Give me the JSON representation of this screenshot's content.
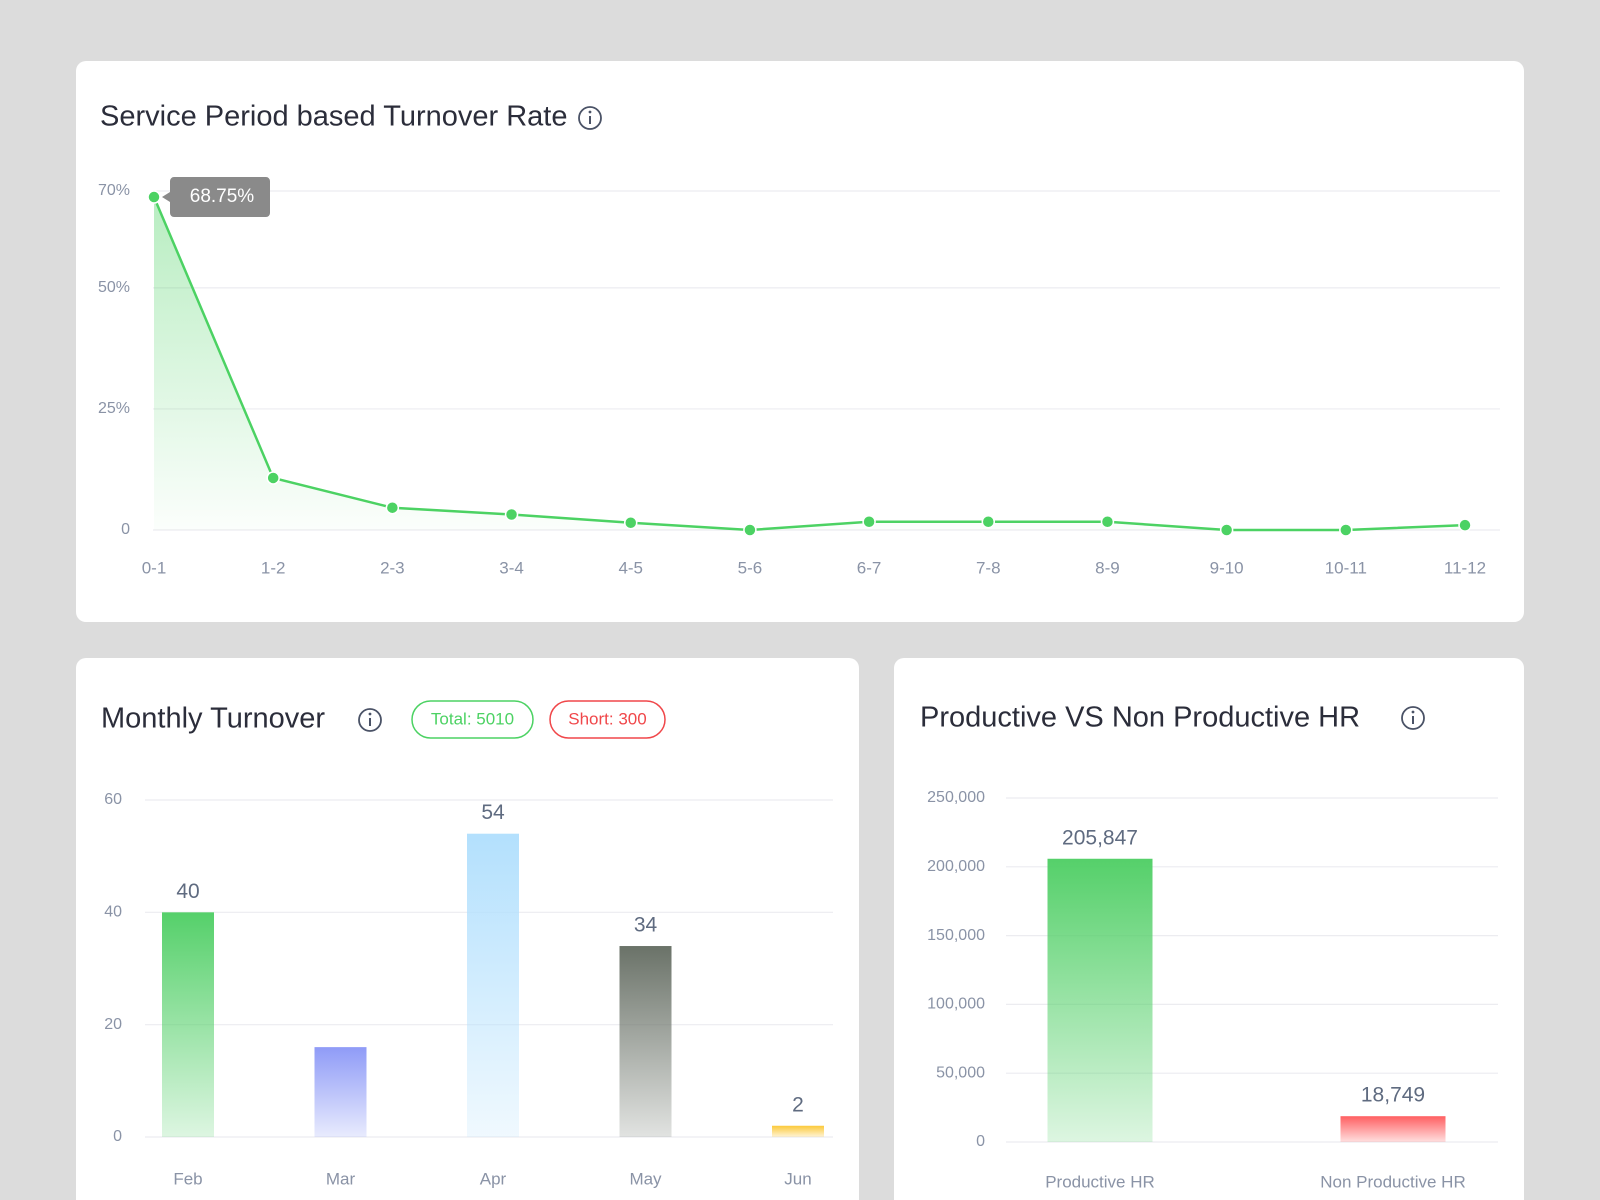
{
  "chart_data": [
    {
      "type": "line",
      "title": "Service Period based Turnover Rate",
      "categories": [
        "0-1",
        "1-2",
        "2-3",
        "3-4",
        "4-5",
        "5-6",
        "6-7",
        "7-8",
        "8-9",
        "9-10",
        "10-11",
        "11-12"
      ],
      "values": [
        68.75,
        10.75,
        4.6,
        3.2,
        1.5,
        0,
        1.7,
        1.7,
        1.7,
        0,
        0,
        1
      ],
      "value_labels": [
        "68.75%",
        null,
        null,
        null,
        null,
        null,
        null,
        null,
        null,
        null,
        null,
        null
      ],
      "color": "#4cd263",
      "ylim": [
        0,
        70
      ],
      "yticks": [
        0,
        {
          "value": 25,
          "label": "25%"
        },
        {
          "value": 50,
          "label": "50%"
        },
        {
          "value": 70,
          "label": "70%"
        }
      ],
      "grid": true
    },
    {
      "type": "bar",
      "title": "Monthly Turnover",
      "annotations": [
        "Total: 5010",
        "Short: 300"
      ],
      "categories": [
        "Feb",
        "Mar",
        "Apr",
        "May",
        "Jun"
      ],
      "values": [
        40,
        16,
        54,
        34,
        2
      ],
      "value_labels": [
        "40",
        null,
        "54",
        "34",
        "2"
      ],
      "colors": [
        "#55d06a",
        "#8f9bf7",
        "#b3e0fd",
        "#6a7268",
        "#fcc93a"
      ],
      "ylim": [
        0,
        60
      ],
      "yticks": [
        0,
        20,
        40,
        60
      ],
      "grid": true
    },
    {
      "type": "bar",
      "title": "Productive VS Non Productive HR",
      "categories": [
        "Productive HR",
        "Non Productive HR"
      ],
      "values": [
        205847,
        18749
      ],
      "value_labels": [
        "205,847",
        "18,749"
      ],
      "colors": [
        "#55d06a",
        "#ff5f61"
      ],
      "ylim": [
        0,
        250000
      ],
      "yticks": [
        0,
        {
          "value": 50000,
          "label": "50,000"
        },
        {
          "value": 100000,
          "label": "100,000"
        },
        {
          "value": 150000,
          "label": "150,000"
        },
        {
          "value": 200000,
          "label": "200,000"
        },
        {
          "value": 250000,
          "label": "250,000"
        }
      ],
      "grid": true
    }
  ]
}
